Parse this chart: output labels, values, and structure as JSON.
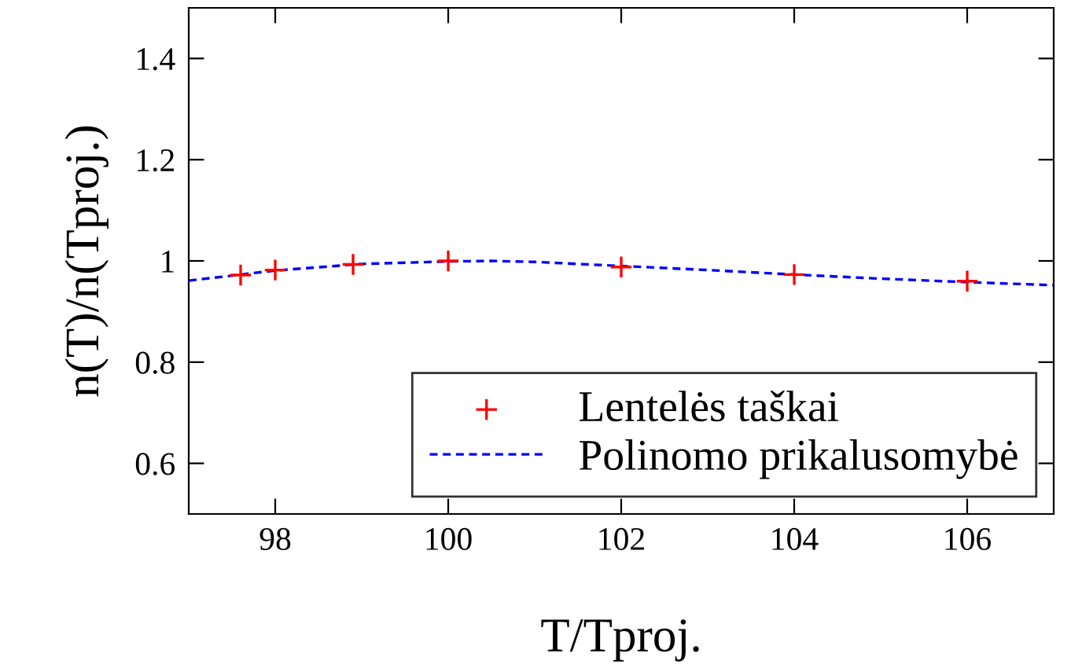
{
  "chart_data": {
    "type": "scatter",
    "xlabel": "T/Tproj.",
    "ylabel": "n(T)/n(Tproj.)",
    "xlim": [
      97,
      107
    ],
    "ylim": [
      0.5,
      1.5
    ],
    "xticks": [
      98,
      100,
      102,
      104,
      106
    ],
    "yticks": [
      0.6,
      0.8,
      {
        "value": 1,
        "label": "1"
      },
      1.2,
      1.4
    ],
    "grid": false,
    "legend": "bottom right",
    "series": [
      {
        "name": "Lentelės taškai",
        "marker": "cross",
        "color": "#ff0000",
        "x": [
          97.6,
          98.0,
          98.9,
          100.0,
          102.0,
          104.0,
          106.0
        ],
        "values": [
          0.972,
          0.982,
          0.993,
          1.0,
          0.988,
          0.973,
          0.96
        ]
      },
      {
        "name": "Polinomo prikalusomybė",
        "type": "line",
        "line_style": "dashed",
        "color": "#0000ff",
        "x": [
          97,
          97.6,
          98,
          99,
          100,
          100.5,
          101,
          102,
          103,
          104,
          105,
          106,
          107
        ],
        "values": [
          0.961,
          0.973,
          0.981,
          0.994,
          0.999,
          1.0,
          0.998,
          0.99,
          0.982,
          0.973,
          0.965,
          0.958,
          0.952
        ]
      }
    ]
  }
}
